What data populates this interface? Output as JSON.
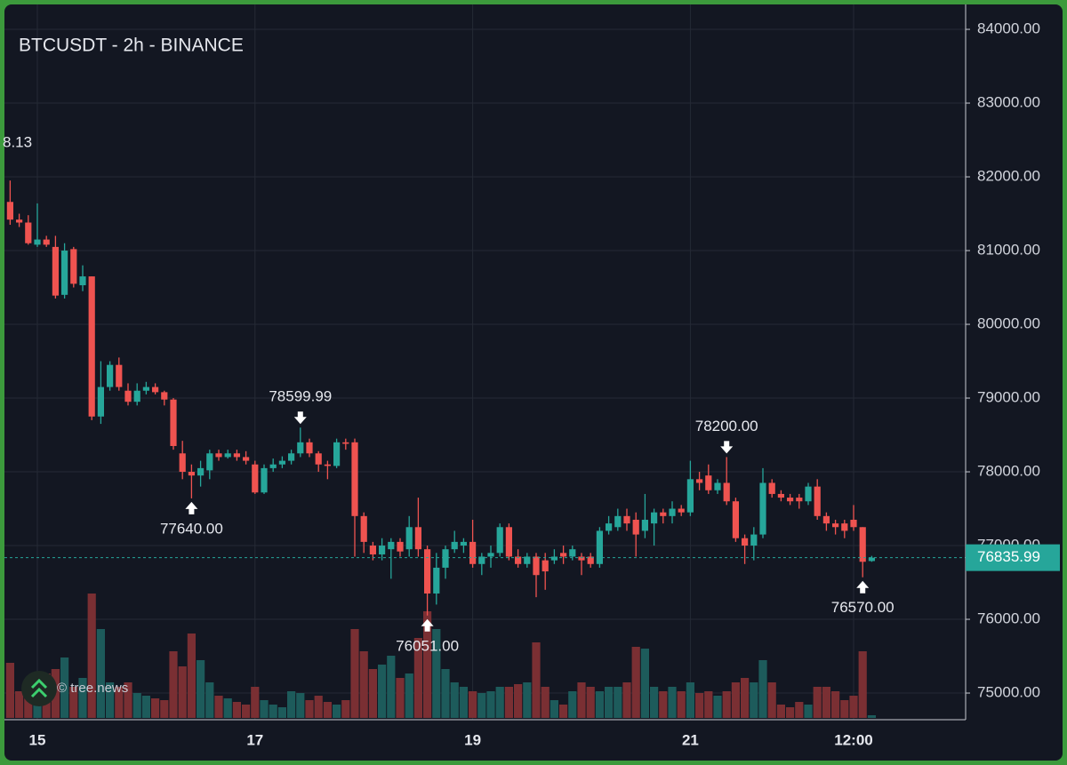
{
  "chart_data": {
    "type": "candlestick",
    "title": "BTCUSDT - 2h - BINANCE",
    "watermark": "© tree.news",
    "clipped_label": "8.13",
    "up_color": "#26a69a",
    "down_color": "#ef5350",
    "volume_up_color": "#1d5b5b",
    "volume_down_color": "#7a2f33",
    "grid": true,
    "ylim": [
      74663,
      84398
    ],
    "yticks": [
      {
        "value": 75000,
        "label": "75000.00"
      },
      {
        "value": 76000,
        "label": "76000.00"
      },
      {
        "value": 77000,
        "label": "77000.00"
      },
      {
        "value": 78000,
        "label": "78000.00"
      },
      {
        "value": 79000,
        "label": "79000.00"
      },
      {
        "value": 80000,
        "label": "80000.00"
      },
      {
        "value": 81000,
        "label": "81000.00"
      },
      {
        "value": 82000,
        "label": "82000.00"
      },
      {
        "value": 83000,
        "label": "83000.00"
      },
      {
        "value": 84000,
        "label": "84000.00"
      }
    ],
    "last_price": 76835.99,
    "high_labels": [
      "78599.99",
      "78200.00"
    ],
    "low_labels": [
      "77640.00",
      "76051.00",
      "76570.00"
    ],
    "categories": [
      null,
      null,
      null,
      "15",
      null,
      null,
      null,
      null,
      null,
      null,
      null,
      null,
      null,
      null,
      null,
      null,
      null,
      null,
      null,
      null,
      null,
      null,
      null,
      null,
      null,
      null,
      null,
      "17",
      null,
      null,
      null,
      null,
      null,
      null,
      null,
      null,
      null,
      null,
      null,
      null,
      null,
      null,
      null,
      null,
      null,
      null,
      null,
      null,
      null,
      null,
      null,
      "19",
      null,
      null,
      null,
      null,
      null,
      null,
      null,
      null,
      null,
      null,
      null,
      null,
      null,
      null,
      null,
      null,
      null,
      null,
      null,
      null,
      null,
      null,
      null,
      "21",
      null,
      null,
      null,
      null,
      null,
      null,
      null,
      null,
      null,
      null,
      null,
      null,
      null,
      null,
      null,
      null,
      null,
      "12:00",
      null,
      null
    ],
    "open": [
      81660,
      81420,
      81380,
      81080,
      81150,
      81050,
      80400,
      81020,
      80530,
      80650,
      78750,
      79150,
      79450,
      79100,
      78950,
      79100,
      79150,
      79080,
      78980,
      78250,
      78000,
      77950,
      78020,
      78250,
      78200,
      78250,
      78200,
      78100,
      77720,
      78050,
      78100,
      78150,
      78250,
      78400,
      78250,
      78100,
      78080,
      78400,
      78400,
      77400,
      77000,
      76880,
      76950,
      77050,
      76950,
      77250,
      76950,
      76350,
      76700,
      76950,
      77000,
      77050,
      76750,
      76850,
      76900,
      77250,
      76850,
      76750,
      76850,
      76800,
      76800,
      76900,
      76850,
      76850,
      76850,
      76750,
      77200,
      77250,
      77400,
      77350,
      77200,
      77300,
      77450,
      77400,
      77500,
      77450,
      77900,
      77950,
      77750,
      77850,
      77600,
      77100,
      77000,
      77150,
      77850,
      77700,
      77650,
      77650,
      77600,
      77800,
      77400,
      77300,
      77300,
      77350,
      77250,
      76790
    ],
    "high": [
      81950,
      81500,
      81480,
      81640,
      81200,
      81200,
      81100,
      81050,
      80800,
      80650,
      79500,
      79500,
      79550,
      79200,
      79200,
      79220,
      79200,
      79100,
      79000,
      78420,
      78100,
      78150,
      78300,
      78300,
      78300,
      78300,
      78280,
      78150,
      78100,
      78180,
      78210,
      78300,
      78599.99,
      78450,
      78280,
      78150,
      78450,
      78450,
      78450,
      77450,
      77050,
      77100,
      77100,
      77100,
      77400,
      77650,
      77000,
      76900,
      77000,
      77200,
      77100,
      77350,
      76900,
      77000,
      77300,
      77300,
      76950,
      76900,
      76900,
      76900,
      76950,
      77000,
      77000,
      76900,
      76900,
      77250,
      77400,
      77500,
      77500,
      77450,
      77700,
      77500,
      77500,
      77600,
      77550,
      78150,
      78000,
      78100,
      77900,
      78200,
      77650,
      77150,
      77250,
      78050,
      77900,
      77750,
      77700,
      77700,
      77850,
      77900,
      77450,
      77350,
      77350,
      77550,
      77250,
      76860
    ],
    "low": [
      81350,
      81320,
      81080,
      81050,
      81050,
      80350,
      80350,
      80500,
      80450,
      78700,
      78650,
      79100,
      79100,
      78900,
      78900,
      79050,
      79050,
      78900,
      78300,
      77900,
      77640,
      77800,
      77900,
      78150,
      78180,
      78150,
      78100,
      77700,
      77700,
      78000,
      78050,
      78100,
      78200,
      78200,
      78000,
      77900,
      78050,
      78300,
      76850,
      76900,
      76800,
      76800,
      76550,
      76850,
      76850,
      76850,
      76051,
      76200,
      76550,
      76900,
      76900,
      76700,
      76600,
      76700,
      76850,
      76800,
      76700,
      76700,
      76300,
      76400,
      76750,
      76750,
      76800,
      76600,
      76700,
      76700,
      77150,
      77200,
      77200,
      76850,
      77100,
      77000,
      77300,
      77300,
      77400,
      77400,
      77750,
      77700,
      77700,
      77550,
      77050,
      76750,
      76800,
      77100,
      77650,
      77600,
      77550,
      77500,
      77550,
      77350,
      77200,
      77150,
      77100,
      77200,
      76570,
      76780
    ],
    "close": [
      81420,
      81380,
      81100,
      81150,
      81080,
      80390,
      81000,
      80550,
      80650,
      78750,
      79150,
      79450,
      79150,
      78950,
      79100,
      79150,
      79080,
      78980,
      78350,
      78000,
      77950,
      78050,
      78250,
      78200,
      78250,
      78200,
      78150,
      77720,
      78050,
      78100,
      78150,
      78250,
      78400,
      78250,
      78100,
      78080,
      78400,
      78380,
      77400,
      77050,
      76880,
      77000,
      77050,
      76920,
      77250,
      76950,
      76350,
      76700,
      76950,
      77050,
      77050,
      76750,
      76850,
      76900,
      77250,
      76850,
      76750,
      76850,
      76600,
      76650,
      76850,
      76850,
      76950,
      76800,
      76750,
      77200,
      77300,
      77400,
      77300,
      77150,
      77350,
      77450,
      77400,
      77500,
      77450,
      77900,
      77850,
      77750,
      77850,
      77600,
      77100,
      77000,
      77150,
      77850,
      77700,
      77650,
      77600,
      77600,
      77800,
      77400,
      77300,
      77250,
      77200,
      77250,
      76780,
      76835.99
    ],
    "volume_ylim": [
      0,
      160
    ],
    "volumes": [
      62,
      30,
      40,
      45,
      50,
      55,
      68,
      35,
      45,
      140,
      100,
      40,
      35,
      40,
      28,
      25,
      22,
      20,
      75,
      58,
      95,
      65,
      40,
      25,
      22,
      18,
      15,
      35,
      20,
      15,
      12,
      30,
      28,
      20,
      25,
      18,
      15,
      20,
      100,
      75,
      55,
      60,
      70,
      45,
      50,
      90,
      120,
      100,
      55,
      40,
      35,
      30,
      28,
      30,
      35,
      35,
      38,
      40,
      85,
      35,
      20,
      15,
      30,
      40,
      35,
      30,
      35,
      35,
      40,
      80,
      78,
      35,
      30,
      35,
      30,
      40,
      28,
      30,
      25,
      30,
      40,
      45,
      40,
      65,
      40,
      15,
      12,
      18,
      15,
      35,
      35,
      30,
      20,
      25,
      75,
      3
    ]
  }
}
